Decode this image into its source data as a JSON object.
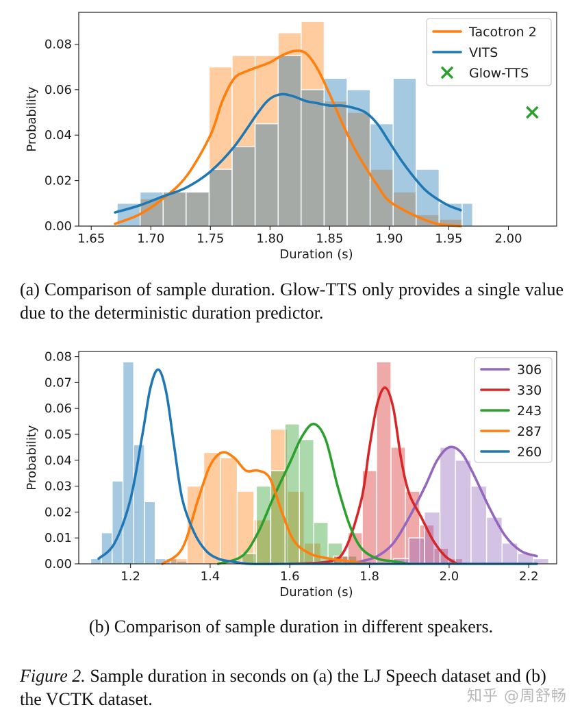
{
  "chart_data": [
    {
      "id": "a",
      "type": "histogram+kde",
      "xlabel": "Duration (s)",
      "ylabel": "Probability",
      "xlim": [
        1.6395,
        2.0405
      ],
      "ylim": [
        0,
        0.094
      ],
      "xticks": [
        1.65,
        1.7,
        1.75,
        1.8,
        1.85,
        1.9,
        1.95,
        2.0
      ],
      "xtick_labels": [
        "1.65",
        "1.70",
        "1.75",
        "1.80",
        "1.85",
        "1.90",
        "1.95",
        "2.00"
      ],
      "yticks": [
        0,
        0.02,
        0.04,
        0.06,
        0.08
      ],
      "ytick_labels": [
        "0.00",
        "0.02",
        "0.04",
        "0.06",
        "0.08"
      ],
      "bin_edges": [
        1.6717,
        1.691,
        1.7103,
        1.7296,
        1.7489,
        1.7682,
        1.7875,
        1.8068,
        1.8261,
        1.8454,
        1.8647,
        1.884,
        1.9033,
        1.9226,
        1.9419,
        1.9612
      ],
      "histograms": [
        {
          "name": "Tacotron 2",
          "color": "#ff7f0e",
          "values": [
            0.0,
            0.012,
            0.015,
            0.015,
            0.07,
            0.075,
            0.075,
            0.085,
            0.09,
            0.055,
            0.05,
            0.025,
            0.015,
            0.005,
            0.003
          ]
        },
        {
          "name": "VITS",
          "color": "#1f77b4",
          "values": [
            0.01,
            0.015,
            0.015,
            0.015,
            0.025,
            0.035,
            0.045,
            0.075,
            0.06,
            0.065,
            0.06,
            0.045,
            0.065,
            0.025,
            0.01
          ]
        }
      ],
      "extra_bars": [
        {
          "name": "VITS",
          "x0": 1.9612,
          "x1": 1.97,
          "value": 0.01
        }
      ],
      "series": [
        {
          "name": "Tacotron 2",
          "color": "#ff7f0e",
          "x": [
            1.67,
            1.69,
            1.71,
            1.73,
            1.75,
            1.76,
            1.77,
            1.78,
            1.79,
            1.8,
            1.81,
            1.82,
            1.83,
            1.84,
            1.85,
            1.86,
            1.87,
            1.88,
            1.89,
            1.9,
            1.92,
            1.94,
            1.96
          ],
          "y": [
            0.001,
            0.005,
            0.012,
            0.022,
            0.04,
            0.055,
            0.065,
            0.068,
            0.07,
            0.072,
            0.075,
            0.077,
            0.076,
            0.069,
            0.058,
            0.046,
            0.035,
            0.026,
            0.018,
            0.011,
            0.005,
            0.001,
            0.0
          ]
        },
        {
          "name": "VITS",
          "color": "#1f77b4",
          "x": [
            1.67,
            1.69,
            1.71,
            1.73,
            1.75,
            1.77,
            1.79,
            1.8,
            1.81,
            1.82,
            1.83,
            1.84,
            1.85,
            1.86,
            1.87,
            1.88,
            1.89,
            1.9,
            1.91,
            1.92,
            1.93,
            1.94,
            1.95,
            1.96
          ],
          "y": [
            0.006,
            0.009,
            0.013,
            0.017,
            0.024,
            0.035,
            0.05,
            0.056,
            0.058,
            0.057,
            0.055,
            0.054,
            0.053,
            0.053,
            0.052,
            0.05,
            0.045,
            0.037,
            0.029,
            0.022,
            0.016,
            0.012,
            0.009,
            0.007
          ]
        }
      ],
      "markers": [
        {
          "name": "Glow-TTS",
          "color": "#2ca02c",
          "shape": "x",
          "x": 2.02,
          "y": 0.05
        }
      ],
      "legend": [
        "Tacotron 2",
        "VITS",
        "Glow-TTS"
      ],
      "legend_position": "upper-right"
    },
    {
      "id": "b",
      "type": "histogram+kde",
      "xlabel": "Duration (s)",
      "ylabel": "Probability",
      "xlim": [
        1.07,
        2.27
      ],
      "ylim": [
        0,
        0.082
      ],
      "xticks": [
        1.2,
        1.4,
        1.6,
        1.8,
        2.0,
        2.2
      ],
      "xtick_labels": [
        "1.2",
        "1.4",
        "1.6",
        "1.8",
        "2.0",
        "2.2"
      ],
      "yticks": [
        0,
        0.01,
        0.02,
        0.03,
        0.04,
        0.05,
        0.06,
        0.07,
        0.08
      ],
      "ytick_labels": [
        "0.00",
        "0.01",
        "0.02",
        "0.03",
        "0.04",
        "0.05",
        "0.06",
        "0.07",
        "0.08"
      ],
      "histograms": [
        {
          "name": "260",
          "color": "#1f77b4",
          "x0": 1.1,
          "x1": 1.37,
          "values": [
            0.002,
            0.012,
            0.032,
            0.078,
            0.046,
            0.024,
            0.002,
            0.002,
            0.001,
            0.0
          ]
        },
        {
          "name": "287",
          "color": "#ff7f0e",
          "x0": 1.3,
          "x1": 1.72,
          "values": [
            0.002,
            0.03,
            0.043,
            0.041,
            0.028,
            0.017,
            0.052,
            0.028,
            0.008,
            0.001
          ]
        },
        {
          "name": "243",
          "color": "#2ca02c",
          "x0": 1.48,
          "x1": 1.84,
          "values": [
            0.004,
            0.03,
            0.036,
            0.054,
            0.048,
            0.016,
            0.008,
            0.003,
            0.001,
            0.0
          ]
        },
        {
          "name": "330",
          "color": "#d62728",
          "x0": 1.71,
          "x1": 2.07,
          "values": [
            0.003,
            0.012,
            0.036,
            0.078,
            0.045,
            0.028,
            0.015,
            0.006,
            0.002,
            0.0
          ]
        },
        {
          "name": "306",
          "color": "#9467bd",
          "x0": 1.86,
          "x1": 2.25,
          "values": [
            0.002,
            0.01,
            0.02,
            0.045,
            0.04,
            0.03,
            0.018,
            0.008,
            0.004,
            0.002
          ]
        }
      ],
      "series": [
        {
          "name": "306",
          "color": "#9467bd",
          "x": [
            1.74,
            1.78,
            1.82,
            1.86,
            1.9,
            1.94,
            1.97,
            2.0,
            2.03,
            2.06,
            2.1,
            2.14,
            2.18,
            2.22
          ],
          "y": [
            0.0,
            0.001,
            0.003,
            0.008,
            0.018,
            0.03,
            0.04,
            0.045,
            0.043,
            0.035,
            0.022,
            0.011,
            0.005,
            0.003
          ]
        },
        {
          "name": "330",
          "color": "#d62728",
          "x": [
            1.6,
            1.7,
            1.74,
            1.78,
            1.8,
            1.82,
            1.84,
            1.86,
            1.88,
            1.9,
            1.93,
            1.96,
            1.99,
            2.02
          ],
          "y": [
            0.0,
            0.001,
            0.006,
            0.025,
            0.045,
            0.062,
            0.068,
            0.06,
            0.04,
            0.027,
            0.018,
            0.009,
            0.003,
            0.0
          ]
        },
        {
          "name": "243",
          "color": "#2ca02c",
          "x": [
            1.42,
            1.48,
            1.52,
            1.56,
            1.6,
            1.63,
            1.66,
            1.69,
            1.72,
            1.75,
            1.78,
            1.82,
            1.86,
            1.9
          ],
          "y": [
            0.0,
            0.003,
            0.012,
            0.026,
            0.039,
            0.049,
            0.054,
            0.048,
            0.03,
            0.015,
            0.006,
            0.002,
            0.001,
            0.0
          ]
        },
        {
          "name": "287",
          "color": "#ff7f0e",
          "x": [
            1.28,
            1.33,
            1.37,
            1.4,
            1.43,
            1.46,
            1.49,
            1.52,
            1.55,
            1.58,
            1.61,
            1.65,
            1.7,
            1.75,
            1.8
          ],
          "y": [
            0.0,
            0.006,
            0.025,
            0.038,
            0.043,
            0.041,
            0.036,
            0.036,
            0.033,
            0.02,
            0.009,
            0.004,
            0.002,
            0.001,
            0.0
          ]
        },
        {
          "name": "260",
          "color": "#1f77b4",
          "x": [
            1.12,
            1.16,
            1.2,
            1.23,
            1.25,
            1.27,
            1.29,
            1.31,
            1.33,
            1.36,
            1.39,
            1.42,
            1.45,
            1.5,
            1.6,
            1.8,
            1.9,
            2.0,
            2.1,
            2.22
          ],
          "y": [
            0.002,
            0.008,
            0.025,
            0.05,
            0.068,
            0.075,
            0.066,
            0.045,
            0.025,
            0.012,
            0.005,
            0.002,
            0.001,
            0.0,
            0.0,
            0.0,
            0.0,
            0.0,
            0.0,
            0.0
          ]
        }
      ],
      "legend": [
        "306",
        "330",
        "243",
        "287",
        "260"
      ],
      "legend_position": "upper-right"
    }
  ],
  "captions": {
    "a": "(a) Comparison of sample duration.  Glow-TTS only provides a single value due to the deterministic duration predictor.",
    "b": "(b) Comparison of sample duration in different speakers.",
    "figure_label": "Figure 2.",
    "figure_text": " Sample duration in seconds on (a) the LJ Speech dataset and (b) the VCTK dataset."
  },
  "watermark": "知乎 @周舒畅"
}
